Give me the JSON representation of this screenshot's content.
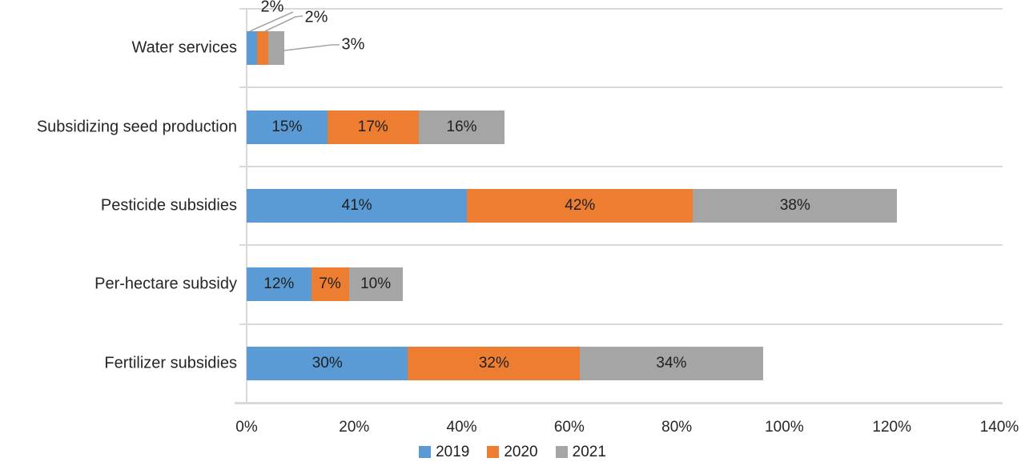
{
  "chart_data": {
    "type": "bar",
    "orientation": "horizontal",
    "stacked": true,
    "title": "",
    "xlabel": "",
    "ylabel": "",
    "xlim": [
      0,
      140
    ],
    "x_tick_labels": [
      "0%",
      "20%",
      "40%",
      "60%",
      "80%",
      "100%",
      "120%",
      "140%"
    ],
    "categories_top_to_bottom": [
      "Water services",
      "Subsidizing seed production",
      "Pesticide subsidies",
      "Per-hectare subsidy",
      "Fertilizer subsidies"
    ],
    "series": [
      {
        "name": "2019",
        "color": "#5B9BD5",
        "values": [
          2,
          15,
          41,
          12,
          30
        ],
        "labels": [
          "2%",
          "15%",
          "41%",
          "12%",
          "30%"
        ]
      },
      {
        "name": "2020",
        "color": "#ED7D31",
        "values": [
          2,
          17,
          42,
          7,
          32
        ],
        "labels": [
          "2%",
          "17%",
          "42%",
          "7%",
          "32%"
        ]
      },
      {
        "name": "2021",
        "color": "#A5A5A5",
        "values": [
          3,
          16,
          38,
          10,
          34
        ],
        "labels": [
          "3%",
          "16%",
          "38%",
          "10%",
          "34%"
        ]
      }
    ],
    "data_labels": "shown inside segments; Water services row uses leader-line callouts",
    "legend_position": "bottom",
    "legend_entries": [
      "2019",
      "2020",
      "2021"
    ],
    "gridlines": "horizontal category boundaries only",
    "colors": {
      "gridline": "#D9D9D9",
      "leader_line": "#A6A6A6",
      "text": "#262626"
    }
  }
}
